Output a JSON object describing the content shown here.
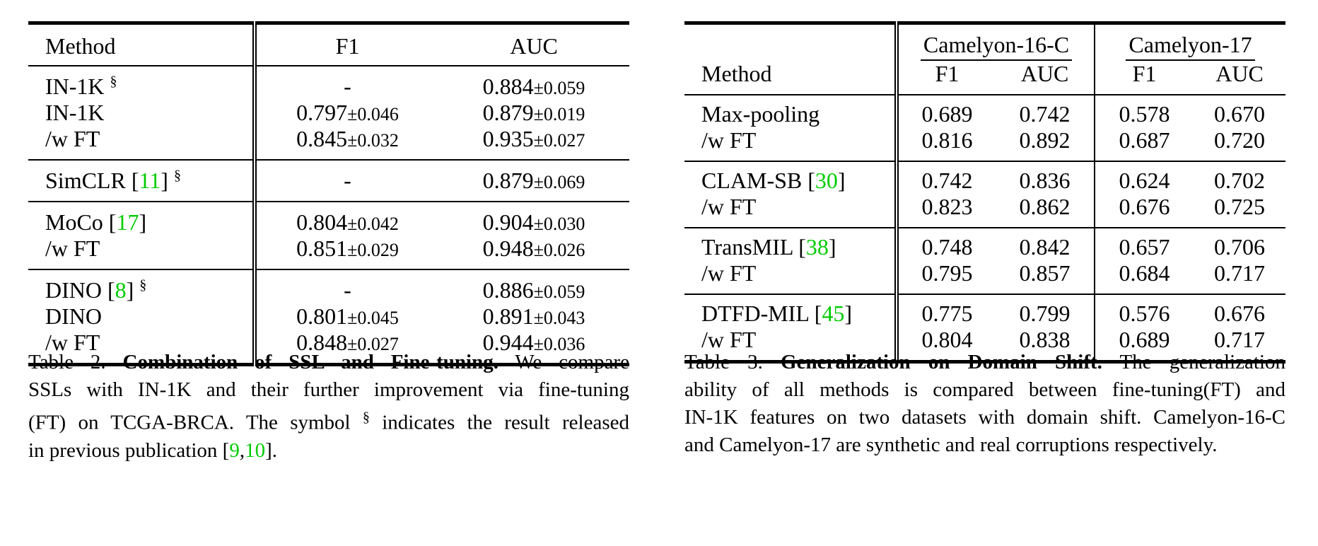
{
  "table2": {
    "headers": [
      "Method",
      "F1",
      "AUC"
    ],
    "groups": [
      [
        {
          "method": "IN-1K",
          "sup": "§",
          "cite": "",
          "f1": "-",
          "f1_pm": "",
          "auc": "0.884",
          "auc_pm": "±0.059"
        },
        {
          "method": "IN-1K",
          "sup": "",
          "cite": "",
          "f1": "0.797",
          "f1_pm": "±0.046",
          "auc": "0.879",
          "auc_pm": "±0.019"
        },
        {
          "method": "/w FT",
          "sup": "",
          "cite": "",
          "f1": "0.845",
          "f1_pm": "±0.032",
          "auc": "0.935",
          "auc_pm": "±0.027"
        }
      ],
      [
        {
          "method": "SimCLR",
          "sup": "§",
          "cite": "11",
          "f1": "-",
          "f1_pm": "",
          "auc": "0.879",
          "auc_pm": "±0.069"
        }
      ],
      [
        {
          "method": "MoCo",
          "sup": "",
          "cite": "17",
          "f1": "0.804",
          "f1_pm": "±0.042",
          "auc": "0.904",
          "auc_pm": "±0.030"
        },
        {
          "method": "/w FT",
          "sup": "",
          "cite": "",
          "f1": "0.851",
          "f1_pm": "±0.029",
          "auc": "0.948",
          "auc_pm": "±0.026"
        }
      ],
      [
        {
          "method": "DINO",
          "sup": "§",
          "cite": "8",
          "f1": "-",
          "f1_pm": "",
          "auc": "0.886",
          "auc_pm": "±0.059"
        },
        {
          "method": "DINO",
          "sup": "",
          "cite": "",
          "f1": "0.801",
          "f1_pm": "±0.045",
          "auc": "0.891",
          "auc_pm": "±0.043"
        },
        {
          "method": "/w FT",
          "sup": "",
          "cite": "",
          "f1": "0.848",
          "f1_pm": "±0.027",
          "auc": "0.944",
          "auc_pm": "±0.036"
        }
      ]
    ],
    "caption": {
      "label": "Table 2.",
      "title": "Combination of SSL and Fine-tuning.",
      "line1_rest": "We compare",
      "line2": "SSLs with IN-1K and their further improvement via fine-tuning",
      "line3_a": "(FT) on TCGA-BRCA. The symbol",
      "line3_sup": "§",
      "line3_b": "indicates the result released",
      "line4_a": "in previous publication [",
      "line4_cite1": "9",
      "line4_comma": ",",
      "line4_cite2": "10",
      "line4_b": "]."
    }
  },
  "table3": {
    "method_header": "Method",
    "datasets": [
      "Camelyon-16-C",
      "Camelyon-17"
    ],
    "metrics": [
      "F1",
      "AUC",
      "F1",
      "AUC"
    ],
    "groups": [
      [
        {
          "method": "Max-pooling",
          "cite": "",
          "values": [
            "0.689",
            "0.742",
            "0.578",
            "0.670"
          ]
        },
        {
          "method": "/w FT",
          "cite": "",
          "values": [
            "0.816",
            "0.892",
            "0.687",
            "0.720"
          ]
        }
      ],
      [
        {
          "method": "CLAM-SB",
          "cite": "30",
          "values": [
            "0.742",
            "0.836",
            "0.624",
            "0.702"
          ]
        },
        {
          "method": "/w FT",
          "cite": "",
          "values": [
            "0.823",
            "0.862",
            "0.676",
            "0.725"
          ]
        }
      ],
      [
        {
          "method": "TransMIL",
          "cite": "38",
          "values": [
            "0.748",
            "0.842",
            "0.657",
            "0.706"
          ]
        },
        {
          "method": "/w FT",
          "cite": "",
          "values": [
            "0.795",
            "0.857",
            "0.684",
            "0.717"
          ]
        }
      ],
      [
        {
          "method": "DTFD-MIL",
          "cite": "45",
          "values": [
            "0.775",
            "0.799",
            "0.576",
            "0.676"
          ]
        },
        {
          "method": "/w FT",
          "cite": "",
          "values": [
            "0.804",
            "0.838",
            "0.689",
            "0.717"
          ]
        }
      ]
    ],
    "caption": {
      "label": "Table 3.",
      "title": "Generalization on Domain Shift.",
      "line1_rest": "The generalization",
      "line2": "ability of all methods is compared between fine-tuning(FT) and",
      "line3": "IN-1K features on two datasets with domain shift. Camelyon-16-C",
      "line4": "and Camelyon-17 are synthetic and real corruptions respectively."
    }
  },
  "colors": {
    "cite": "#00cc00",
    "text": "#000000"
  }
}
